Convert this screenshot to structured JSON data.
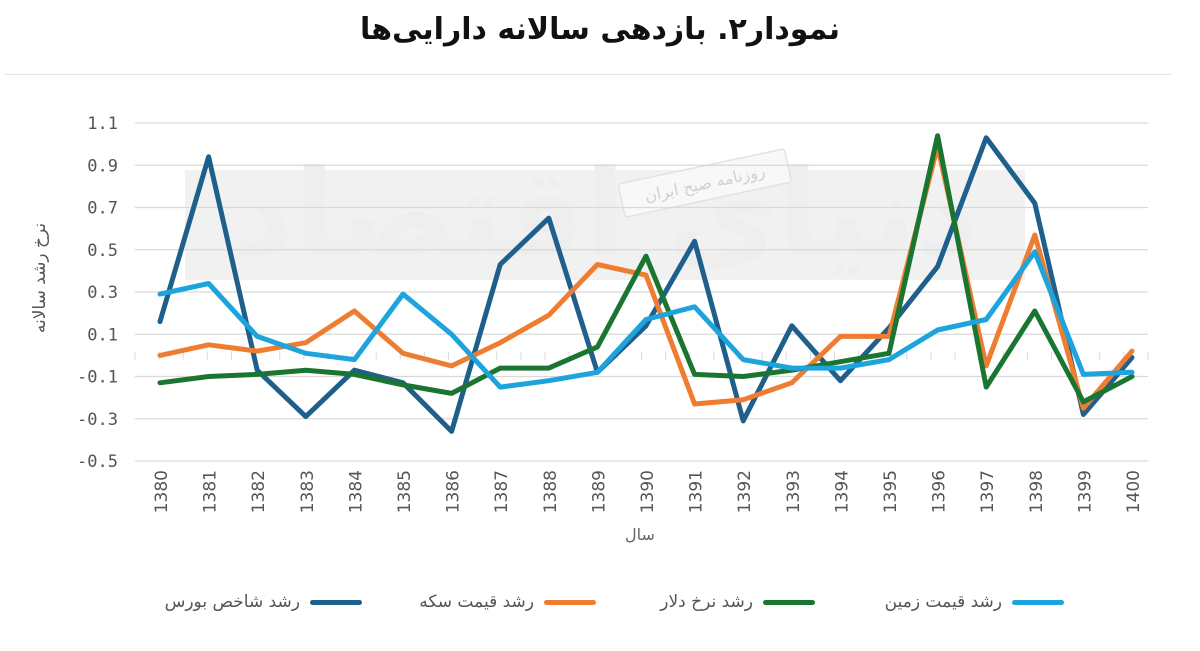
{
  "title": "نمودار۲. بازدهی سالانه دارایی‌ها",
  "watermark": {
    "brand": "دنیای اقتصاد",
    "tagline": "روزنامه صبح ایران"
  },
  "chart_data": {
    "type": "line",
    "title": "نمودار۲. بازدهی سالانه دارایی‌ها",
    "xlabel": "سال",
    "ylabel": "نرخ رشد سالانه",
    "ylim": [
      -0.5,
      1.1
    ],
    "yticks": [
      "1.1",
      "0.9",
      "0.7",
      "0.5",
      "0.3",
      "0.1",
      "-0.1",
      "-0.3",
      "-0.5"
    ],
    "grid": true,
    "legend_position": "bottom",
    "categories": [
      "1380",
      "1381",
      "1382",
      "1383",
      "1384",
      "1385",
      "1386",
      "1387",
      "1388",
      "1389",
      "1390",
      "1391",
      "1392",
      "1393",
      "1394",
      "1395",
      "1396",
      "1397",
      "1398",
      "1399",
      "1400"
    ],
    "series": [
      {
        "name": "رشد شاخص بورس",
        "color": "#1f5f8b",
        "values": [
          0.16,
          0.94,
          -0.07,
          -0.29,
          -0.07,
          -0.13,
          -0.36,
          0.43,
          0.65,
          -0.08,
          0.14,
          0.54,
          -0.31,
          0.14,
          -0.12,
          0.13,
          0.42,
          1.03,
          0.72,
          -0.28,
          -0.01
        ]
      },
      {
        "name": "رشد قیمت سکه",
        "color": "#ee7d31",
        "values": [
          0.0,
          0.05,
          0.02,
          0.06,
          0.21,
          0.01,
          -0.05,
          0.06,
          0.19,
          0.43,
          0.38,
          -0.23,
          -0.21,
          -0.13,
          0.09,
          0.09,
          0.99,
          -0.05,
          0.57,
          -0.25,
          0.02
        ]
      },
      {
        "name": "رشد نرخ دلار",
        "color": "#1a7530",
        "values": [
          -0.13,
          -0.1,
          -0.09,
          -0.07,
          -0.09,
          -0.14,
          -0.18,
          -0.06,
          -0.06,
          0.04,
          0.47,
          -0.09,
          -0.1,
          -0.07,
          -0.03,
          0.01,
          1.04,
          -0.15,
          0.21,
          -0.22,
          -0.1
        ]
      },
      {
        "name": "رشد قیمت زمین",
        "color": "#1ea4dc",
        "values": [
          0.29,
          0.34,
          0.09,
          0.01,
          -0.02,
          0.29,
          0.1,
          -0.15,
          -0.12,
          -0.08,
          0.17,
          0.23,
          -0.02,
          -0.06,
          -0.06,
          -0.02,
          0.12,
          0.17,
          0.49,
          -0.09,
          -0.08
        ]
      }
    ]
  }
}
